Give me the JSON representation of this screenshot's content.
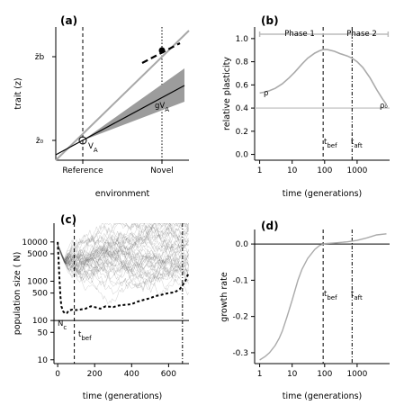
{
  "chart_data": [
    {
      "panel": "(a)",
      "type": "line",
      "xlabel": "environment",
      "ylabel": "trait (z)",
      "x_ticks": [
        "Reference",
        "Novel"
      ],
      "y_ticks": [
        "z̄₀",
        "z̄b"
      ],
      "annotations": [
        "V",
        "gV"
      ],
      "annotation_subscripts": [
        "A",
        "A"
      ],
      "vlines": [
        "Reference",
        "Novel"
      ]
    },
    {
      "panel": "(b)",
      "type": "line",
      "xlabel": "time (generations)",
      "ylabel": "relative plasticity",
      "x_scale": "log",
      "x_ticks": [
        "1",
        "10",
        "100",
        "1000"
      ],
      "y_ticks": [
        "0.0",
        "0.2",
        "0.4",
        "0.6",
        "0.8",
        "1.0"
      ],
      "ylim": [
        -0.05,
        1.1
      ],
      "phases": [
        "Phase 1",
        "Phase 2"
      ],
      "labels": [
        "ρ",
        "ρ₀"
      ],
      "vline_labels": [
        "t",
        "t"
      ],
      "vline_subscripts": [
        "bef",
        "aft"
      ],
      "vlines_x": [
        90,
        700
      ],
      "hline_y": 0.4,
      "series": [
        {
          "x": [
            1,
            1.5,
            2,
            3,
            5,
            8,
            12,
            20,
            30,
            50,
            70,
            90,
            120,
            200,
            300,
            500,
            700,
            1000,
            1500,
            2500,
            4000,
            6000,
            8000
          ],
          "y": [
            0.53,
            0.54,
            0.55,
            0.57,
            0.61,
            0.66,
            0.71,
            0.78,
            0.83,
            0.875,
            0.895,
            0.905,
            0.905,
            0.89,
            0.87,
            0.85,
            0.83,
            0.8,
            0.75,
            0.66,
            0.56,
            0.48,
            0.43
          ]
        }
      ]
    },
    {
      "panel": "(c)",
      "type": "line",
      "xlabel": "time (generations)",
      "ylabel": "population size ( N)",
      "y_scale": "log",
      "x_ticks": [
        "0",
        "200",
        "400",
        "600"
      ],
      "y_ticks": [
        "10",
        "50",
        "100",
        "500",
        "1000",
        "5000",
        "10000"
      ],
      "xlim": [
        -20,
        710
      ],
      "ylim": [
        8,
        30000
      ],
      "hline_label": "N",
      "hline_subscript": "c",
      "hline_y": 100,
      "vline_label": "t",
      "vline_subscript": "bef",
      "vlines_x": [
        90,
        675
      ],
      "series": [
        {
          "x": [
            0,
            5,
            10,
            15,
            20,
            25,
            30,
            40,
            50,
            60,
            80,
            100,
            120,
            150,
            180,
            200,
            230,
            260,
            300,
            330,
            360,
            400,
            430,
            460,
            500,
            530,
            560,
            600,
            630,
            660,
            690,
            705
          ],
          "y": [
            10000,
            3500,
            1000,
            400,
            230,
            200,
            170,
            150,
            155,
            180,
            190,
            185,
            190,
            200,
            230,
            220,
            200,
            230,
            220,
            240,
            250,
            260,
            300,
            330,
            370,
            420,
            450,
            500,
            520,
            620,
            1000,
            1500
          ]
        }
      ]
    },
    {
      "panel": "(d)",
      "type": "line",
      "xlabel": "time (generations)",
      "ylabel": "growth rate",
      "x_scale": "log",
      "x_ticks": [
        "1",
        "10",
        "100",
        "1000"
      ],
      "y_ticks": [
        "-0.3",
        "-0.2",
        "-0.1",
        "0.0"
      ],
      "ylim": [
        -0.33,
        0.04
      ],
      "vline_labels": [
        "t",
        "t"
      ],
      "vline_subscripts": [
        "bef",
        "aft"
      ],
      "vlines_x": [
        90,
        700
      ],
      "hline_y": 0,
      "series": [
        {
          "x": [
            1,
            1.5,
            2,
            3,
            4,
            5,
            7,
            10,
            15,
            20,
            30,
            50,
            70,
            100,
            200,
            500,
            1000,
            2000,
            4000,
            8000
          ],
          "y": [
            -0.32,
            -0.31,
            -0.3,
            -0.28,
            -0.26,
            -0.24,
            -0.2,
            -0.155,
            -0.1,
            -0.07,
            -0.04,
            -0.015,
            -0.004,
            0.001,
            0.003,
            0.006,
            0.01,
            0.017,
            0.025,
            0.028
          ]
        }
      ]
    }
  ]
}
